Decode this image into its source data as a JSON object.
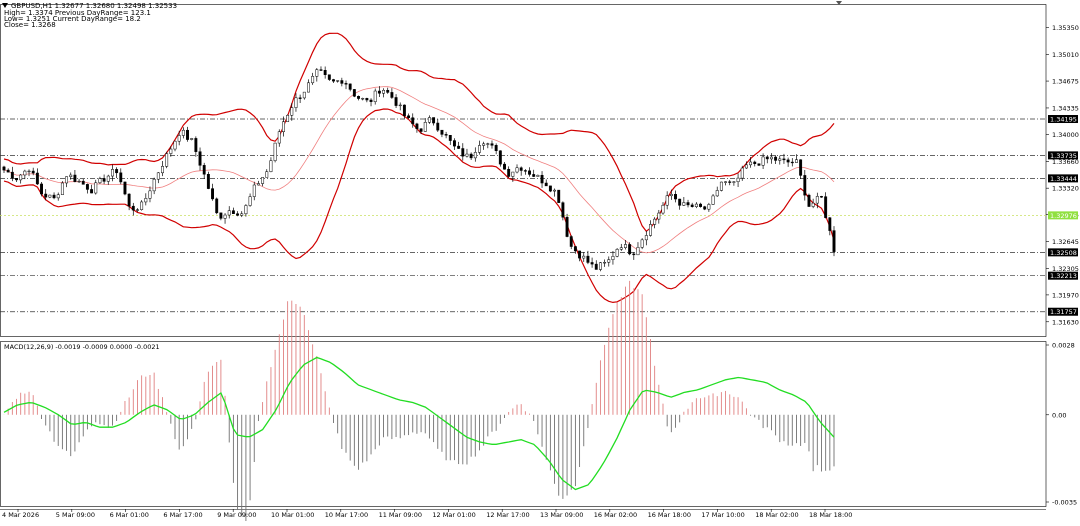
{
  "info": {
    "symbol_line": "GBPUSD,H1  1.32677 1.32680 1.32498 1.32533",
    "high_line": "High= 1.3374 Previous DayRange= 123.1",
    "low_line": "Low= 1.3251 Current DayRange= 18.2",
    "close_line": "Close= 1.3268"
  },
  "macd_label": "MACD(12,26,9) -0.0019 -0.0009 0.0000 -0.0021",
  "colors": {
    "bollinger": "#d00000",
    "ma": "#f08080",
    "macd_signal": "#22dd22",
    "hist_pos": "#e08080",
    "hist_neg": "#707070",
    "current_price_bg": "#90e040",
    "level_bg": "#000000"
  },
  "chart_data": [
    {
      "type": "candlestick",
      "title": "GBPUSD,H1",
      "y_ticks": [
        "1.35350",
        "1.35010",
        "1.34675",
        "1.34335",
        "1.34000",
        "1.33660",
        "1.33320",
        "1.32985",
        "1.32645",
        "1.32305",
        "1.31970",
        "1.31630"
      ],
      "ylim": [
        1.3145,
        1.3565
      ],
      "x_ticks": [
        "4 Mar 2026",
        "5 Mar 09:00",
        "6 Mar 01:00",
        "6 Mar 17:00",
        "9 Mar 09:00",
        "10 Mar 01:00",
        "10 Mar 17:00",
        "11 Mar 09:00",
        "12 Mar 01:00",
        "12 Mar 17:00",
        "13 Mar 09:00",
        "16 Mar 02:00",
        "16 Mar 18:00",
        "17 Mar 10:00",
        "18 Mar 02:00",
        "18 Mar 18:00"
      ],
      "price_path": [
        1.3355,
        1.3345,
        1.3358,
        1.3325,
        1.3318,
        1.335,
        1.334,
        1.333,
        1.3345,
        1.3355,
        1.3305,
        1.331,
        1.3345,
        1.3375,
        1.3405,
        1.339,
        1.3345,
        1.3295,
        1.3305,
        1.33,
        1.3335,
        1.3355,
        1.341,
        1.344,
        1.3458,
        1.348,
        1.3465,
        1.347,
        1.3448,
        1.344,
        1.346,
        1.3445,
        1.342,
        1.3405,
        1.342,
        1.34,
        1.338,
        1.337,
        1.3395,
        1.338,
        1.335,
        1.336,
        1.335,
        1.334,
        1.3325,
        1.326,
        1.3245,
        1.323,
        1.3238,
        1.3262,
        1.325,
        1.3275,
        1.33,
        1.3325,
        1.331,
        1.3308,
        1.3305,
        1.334,
        1.3335,
        1.336,
        1.3365,
        1.337,
        1.3365,
        1.3365,
        1.331,
        1.332,
        1.3255
      ],
      "horizontal_levels": [
        {
          "label": "1.34195",
          "value": 1.34195
        },
        {
          "label": "1.33735",
          "value": 1.33735
        },
        {
          "label": "1.33444",
          "value": 1.33444
        },
        {
          "label": "1.32508",
          "value": 1.32508
        },
        {
          "label": "1.32213",
          "value": 1.32213
        },
        {
          "label": "1.31757",
          "value": 1.31757
        }
      ],
      "current_price": {
        "label": "1.32976",
        "value": 1.32976
      },
      "indicators": [
        "Bollinger Bands",
        "Moving Average"
      ]
    },
    {
      "type": "histogram+line",
      "title": "MACD(12,26,9)",
      "y_ticks": [
        "0.0028",
        "0.00",
        "-0.0035"
      ],
      "ylim": [
        -0.0035,
        0.0028
      ],
      "signal_path": [
        0.0001,
        0.0004,
        0.0005,
        0.0003,
        0.0,
        -0.0004,
        -0.0003,
        -0.0005,
        -0.0005,
        -0.0003,
        0.0001,
        0.0004,
        0.0002,
        -0.0002,
        0.0,
        0.0005,
        0.0009,
        -0.0008,
        -0.0009,
        -0.0006,
        0.0002,
        0.0013,
        0.002,
        0.0023,
        0.0021,
        0.0017,
        0.0012,
        0.001,
        0.0008,
        0.0006,
        0.0005,
        0.0003,
        -0.0001,
        -0.0005,
        -0.0009,
        -0.0011,
        -0.0012,
        -0.0011,
        -0.001,
        -0.0012,
        -0.0018,
        -0.0026,
        -0.003,
        -0.0028,
        -0.002,
        -0.001,
        0.0002,
        0.001,
        0.0009,
        0.0007,
        0.0009,
        0.001,
        0.0012,
        0.0014,
        0.0015,
        0.0014,
        0.0013,
        0.001,
        0.0008,
        0.0005,
        -0.0003,
        -0.0009
      ]
    }
  ]
}
